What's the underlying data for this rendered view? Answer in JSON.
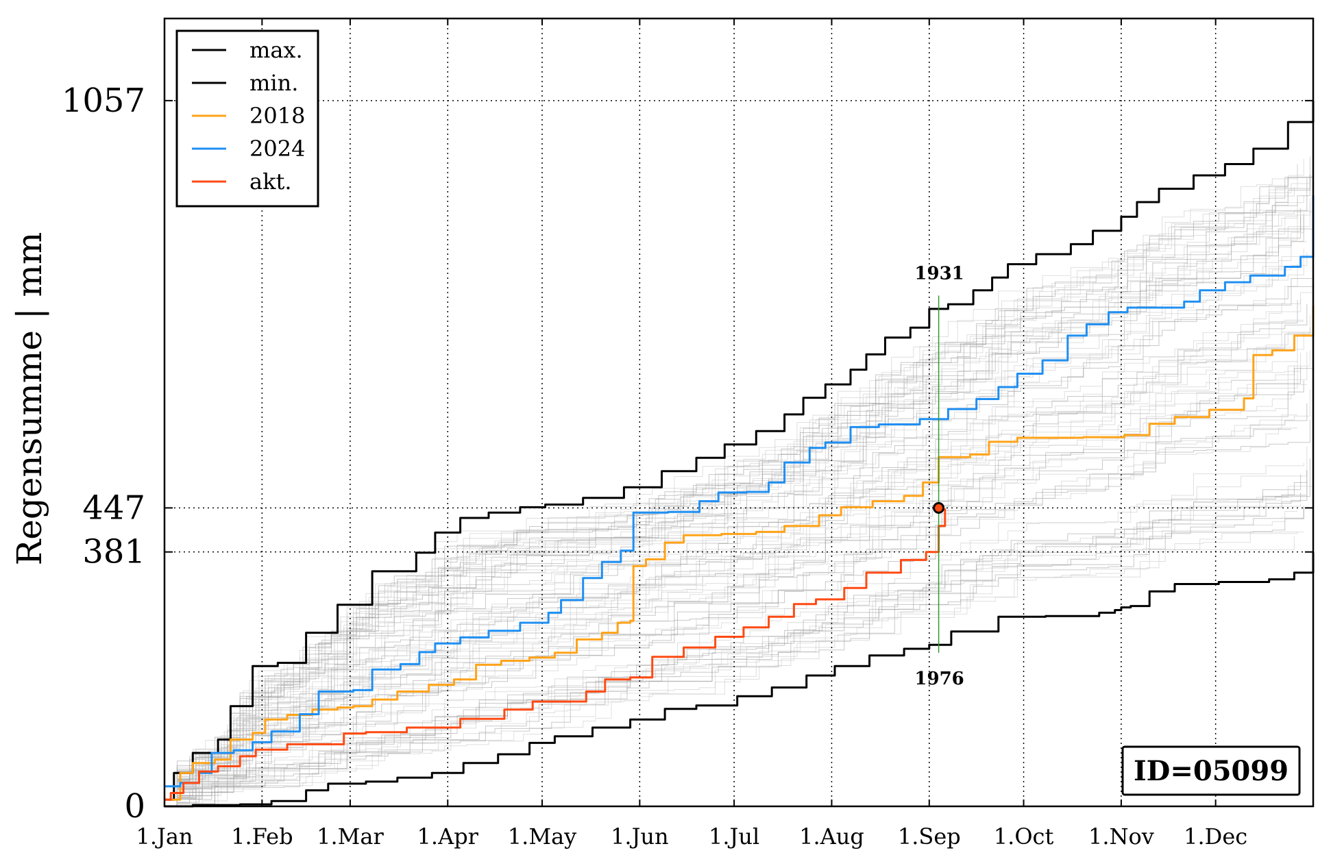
{
  "chart_data": {
    "type": "line",
    "title": "",
    "xlabel": "",
    "ylabel": "Regensumme | mm",
    "x_unit": "day of year",
    "xlim": [
      1,
      366
    ],
    "ylim": [
      0,
      1180
    ],
    "x_ticks": [
      {
        "label": "1.Jan",
        "day": 1
      },
      {
        "label": "1.Feb",
        "day": 32
      },
      {
        "label": "1.Mar",
        "day": 60
      },
      {
        "label": "1.Apr",
        "day": 91
      },
      {
        "label": "1.May",
        "day": 121
      },
      {
        "label": "1.Jun",
        "day": 152
      },
      {
        "label": "1.Jul",
        "day": 182
      },
      {
        "label": "1.Aug",
        "day": 213
      },
      {
        "label": "1.Sep",
        "day": 244
      },
      {
        "label": "1.Oct",
        "day": 274
      },
      {
        "label": "1.Nov",
        "day": 305
      },
      {
        "label": "1.Dec",
        "day": 335
      }
    ],
    "y_ticks": [
      {
        "label": "0",
        "value": 0
      },
      {
        "label": "381",
        "value": 381
      },
      {
        "label": "447",
        "value": 447
      },
      {
        "label": "1057",
        "value": 1057
      }
    ],
    "grid": "dotted",
    "legend_position": "top-left",
    "series": [
      {
        "name": "max.",
        "color": "#000000",
        "points": [
          [
            1,
            10
          ],
          [
            4,
            50
          ],
          [
            10,
            80
          ],
          [
            18,
            100
          ],
          [
            22,
            150
          ],
          [
            29,
            210
          ],
          [
            37,
            215
          ],
          [
            46,
            260
          ],
          [
            56,
            302
          ],
          [
            67,
            352
          ],
          [
            81,
            380
          ],
          [
            87,
            410
          ],
          [
            95,
            432
          ],
          [
            104,
            440
          ],
          [
            114,
            448
          ],
          [
            122,
            452
          ],
          [
            134,
            462
          ],
          [
            147,
            478
          ],
          [
            159,
            502
          ],
          [
            170,
            522
          ],
          [
            179,
            542
          ],
          [
            189,
            562
          ],
          [
            198,
            587
          ],
          [
            204,
            612
          ],
          [
            211,
            632
          ],
          [
            219,
            654
          ],
          [
            224,
            677
          ],
          [
            230,
            702
          ],
          [
            238,
            717
          ],
          [
            244,
            745
          ],
          [
            250,
            752
          ],
          [
            258,
            773
          ],
          [
            264,
            792
          ],
          [
            269,
            812
          ],
          [
            278,
            827
          ],
          [
            289,
            842
          ],
          [
            296,
            862
          ],
          [
            305,
            883
          ],
          [
            310,
            905
          ],
          [
            317,
            925
          ],
          [
            328,
            945
          ],
          [
            338,
            962
          ],
          [
            347,
            985
          ],
          [
            358,
            1025
          ],
          [
            366,
            1057
          ]
        ]
      },
      {
        "name": "min.",
        "color": "#000000",
        "points": [
          [
            1,
            0
          ],
          [
            10,
            2
          ],
          [
            25,
            3
          ],
          [
            35,
            8
          ],
          [
            46,
            24
          ],
          [
            53,
            34
          ],
          [
            65,
            37
          ],
          [
            75,
            43
          ],
          [
            86,
            50
          ],
          [
            96,
            65
          ],
          [
            107,
            78
          ],
          [
            117,
            95
          ],
          [
            125,
            105
          ],
          [
            137,
            118
          ],
          [
            149,
            130
          ],
          [
            160,
            146
          ],
          [
            170,
            151
          ],
          [
            183,
            165
          ],
          [
            194,
            178
          ],
          [
            205,
            196
          ],
          [
            214,
            210
          ],
          [
            225,
            226
          ],
          [
            236,
            236
          ],
          [
            244,
            242
          ],
          [
            251,
            262
          ],
          [
            266,
            284
          ],
          [
            281,
            285
          ],
          [
            298,
            290
          ],
          [
            303,
            294
          ],
          [
            305,
            298
          ],
          [
            308,
            300
          ],
          [
            314,
            322
          ],
          [
            322,
            333
          ],
          [
            336,
            336
          ],
          [
            352,
            340
          ],
          [
            360,
            350
          ],
          [
            366,
            381
          ]
        ]
      },
      {
        "name": "2018",
        "color": "#ffa319",
        "points": [
          [
            1,
            10
          ],
          [
            6,
            50
          ],
          [
            10,
            65
          ],
          [
            17,
            70
          ],
          [
            22,
            100
          ],
          [
            29,
            110
          ],
          [
            33,
            130
          ],
          [
            40,
            137
          ],
          [
            48,
            145
          ],
          [
            56,
            148
          ],
          [
            61,
            150
          ],
          [
            67,
            160
          ],
          [
            75,
            172
          ],
          [
            85,
            182
          ],
          [
            93,
            190
          ],
          [
            100,
            212
          ],
          [
            108,
            218
          ],
          [
            117,
            223
          ],
          [
            125,
            230
          ],
          [
            132,
            250
          ],
          [
            140,
            260
          ],
          [
            145,
            275
          ],
          [
            149,
            278
          ],
          [
            150,
            360
          ],
          [
            154,
            370
          ],
          [
            160,
            395
          ],
          [
            166,
            406
          ],
          [
            178,
            408
          ],
          [
            189,
            411
          ],
          [
            198,
            420
          ],
          [
            209,
            436
          ],
          [
            216,
            448
          ],
          [
            226,
            457
          ],
          [
            236,
            465
          ],
          [
            242,
            485
          ],
          [
            247,
            523
          ],
          [
            257,
            527
          ],
          [
            263,
            546
          ],
          [
            272,
            552
          ],
          [
            293,
            553
          ],
          [
            306,
            556
          ],
          [
            314,
            573
          ],
          [
            322,
            583
          ],
          [
            333,
            594
          ],
          [
            344,
            611
          ],
          [
            347,
            676
          ],
          [
            353,
            683
          ],
          [
            360,
            705
          ],
          [
            366,
            750
          ]
        ]
      },
      {
        "name": "2024",
        "color": "#1f8ff2",
        "points": [
          [
            1,
            30
          ],
          [
            6,
            35
          ],
          [
            12,
            50
          ],
          [
            16,
            80
          ],
          [
            23,
            84
          ],
          [
            29,
            96
          ],
          [
            35,
            112
          ],
          [
            44,
            138
          ],
          [
            50,
            172
          ],
          [
            61,
            174
          ],
          [
            67,
            205
          ],
          [
            76,
            213
          ],
          [
            82,
            231
          ],
          [
            87,
            244
          ],
          [
            95,
            253
          ],
          [
            104,
            263
          ],
          [
            114,
            275
          ],
          [
            123,
            290
          ],
          [
            127,
            309
          ],
          [
            134,
            342
          ],
          [
            140,
            366
          ],
          [
            146,
            383
          ],
          [
            150,
            440
          ],
          [
            161,
            441
          ],
          [
            171,
            457
          ],
          [
            177,
            470
          ],
          [
            186,
            471
          ],
          [
            193,
            485
          ],
          [
            198,
            515
          ],
          [
            206,
            537
          ],
          [
            211,
            545
          ],
          [
            219,
            568
          ],
          [
            228,
            572
          ],
          [
            241,
            580
          ],
          [
            250,
            595
          ],
          [
            259,
            610
          ],
          [
            266,
            628
          ],
          [
            272,
            648
          ],
          [
            280,
            668
          ],
          [
            288,
            705
          ],
          [
            294,
            722
          ],
          [
            301,
            740
          ],
          [
            307,
            747
          ],
          [
            320,
            747
          ],
          [
            325,
            756
          ],
          [
            330,
            773
          ],
          [
            338,
            785
          ],
          [
            346,
            795
          ],
          [
            357,
            808
          ],
          [
            362,
            823
          ],
          [
            366,
            915
          ]
        ]
      },
      {
        "name": "akt.",
        "color": "#ff4a13",
        "points": [
          [
            1,
            10
          ],
          [
            3,
            20
          ],
          [
            7,
            35
          ],
          [
            12,
            52
          ],
          [
            18,
            60
          ],
          [
            25,
            75
          ],
          [
            30,
            85
          ],
          [
            40,
            93
          ],
          [
            58,
            109
          ],
          [
            65,
            111
          ],
          [
            78,
            118
          ],
          [
            95,
            131
          ],
          [
            109,
            145
          ],
          [
            118,
            157
          ],
          [
            135,
            172
          ],
          [
            141,
            190
          ],
          [
            149,
            193
          ],
          [
            156,
            224
          ],
          [
            166,
            238
          ],
          [
            176,
            254
          ],
          [
            185,
            268
          ],
          [
            193,
            284
          ],
          [
            201,
            303
          ],
          [
            208,
            310
          ],
          [
            217,
            327
          ],
          [
            224,
            350
          ],
          [
            235,
            369
          ],
          [
            243,
            381
          ],
          [
            247,
            420
          ],
          [
            249,
            446
          ]
        ]
      }
    ],
    "background_years_count": 80,
    "annotations": [
      {
        "text": "1931",
        "x": 247,
        "y": 765
      },
      {
        "text": "1976",
        "x": 247,
        "y": 230
      }
    ],
    "current_point": {
      "x": 247,
      "y": 447
    },
    "station_id_label": "ID=05099"
  }
}
